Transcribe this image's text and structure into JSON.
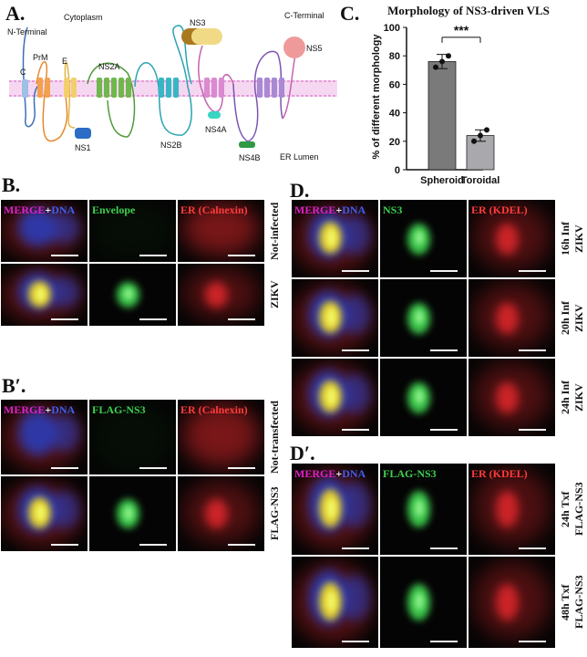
{
  "panelA": {
    "letter": "A.",
    "cytoplasm": "Cytoplasm",
    "n_terminal": "N-Terminal",
    "c_terminal": "C-Terminal",
    "er_lumen": "ER Lumen",
    "proteins": [
      "C",
      "PrM",
      "E",
      "NS1",
      "NS2A",
      "NS2B",
      "NS3",
      "NS4A",
      "NS4B",
      "NS5"
    ]
  },
  "panelC": {
    "letter": "C.",
    "chart_data": {
      "type": "bar",
      "title": "Morphology of NS3-driven VLS",
      "categories": [
        "Spheroid",
        "Toroidal"
      ],
      "values": [
        76,
        24
      ],
      "error": [
        5,
        4
      ],
      "points": [
        [
          72,
          76,
          80
        ],
        [
          20,
          24,
          28
        ]
      ],
      "ylabel": "% of different morphology",
      "ylim": [
        0,
        100
      ],
      "yticks": [
        "0",
        "20",
        "40",
        "60",
        "80",
        "100"
      ],
      "significance": "***",
      "colors": [
        "#7a7a7a",
        "#a9a9ad"
      ]
    }
  },
  "panelB": {
    "letter": "B.",
    "channels": [
      {
        "p1": "MERGE",
        "p2": "+",
        "p3": "DNA"
      },
      {
        "label": "Envelope"
      },
      {
        "label": "ER (Calnexin)"
      }
    ],
    "rows": [
      "Not-infected",
      "ZIKV"
    ]
  },
  "panelBp": {
    "letter": "B′.",
    "channels": [
      {
        "p1": "MERGE",
        "p2": "+",
        "p3": "DNA"
      },
      {
        "label": "FLAG-NS3"
      },
      {
        "label": "ER (Calnexin)"
      }
    ],
    "rows": [
      "Not-transfected",
      "FLAG-NS3"
    ]
  },
  "panelD": {
    "letter": "D.",
    "channels": [
      {
        "p1": "MERGE",
        "p2": "+",
        "p3": "DNA"
      },
      {
        "label": "NS3"
      },
      {
        "label": "ER (KDEL)"
      }
    ],
    "rows": [
      {
        "line1": "16h Inf",
        "line2": "ZIKV"
      },
      {
        "line1": "20h Inf",
        "line2": "ZIKV"
      },
      {
        "line1": "24h Inf",
        "line2": "ZIKV"
      }
    ]
  },
  "panelDp": {
    "letter": "D′.",
    "channels": [
      {
        "p1": "MERGE",
        "p2": "+",
        "p3": "DNA"
      },
      {
        "label": "FLAG-NS3"
      },
      {
        "label": "ER (KDEL)"
      }
    ],
    "rows": [
      {
        "line1": "24h Txf",
        "line2": "FLAG-NS3"
      },
      {
        "line1": "48h Txf",
        "line2": "FLAG-NS3"
      }
    ]
  },
  "colors": {
    "membrane": "#f3b6e6",
    "green": "#3fcf4f",
    "red": "#d8262a",
    "blue": "#2a3fbf",
    "magenta": "#e020c8",
    "yellow": "#e8d32c"
  }
}
